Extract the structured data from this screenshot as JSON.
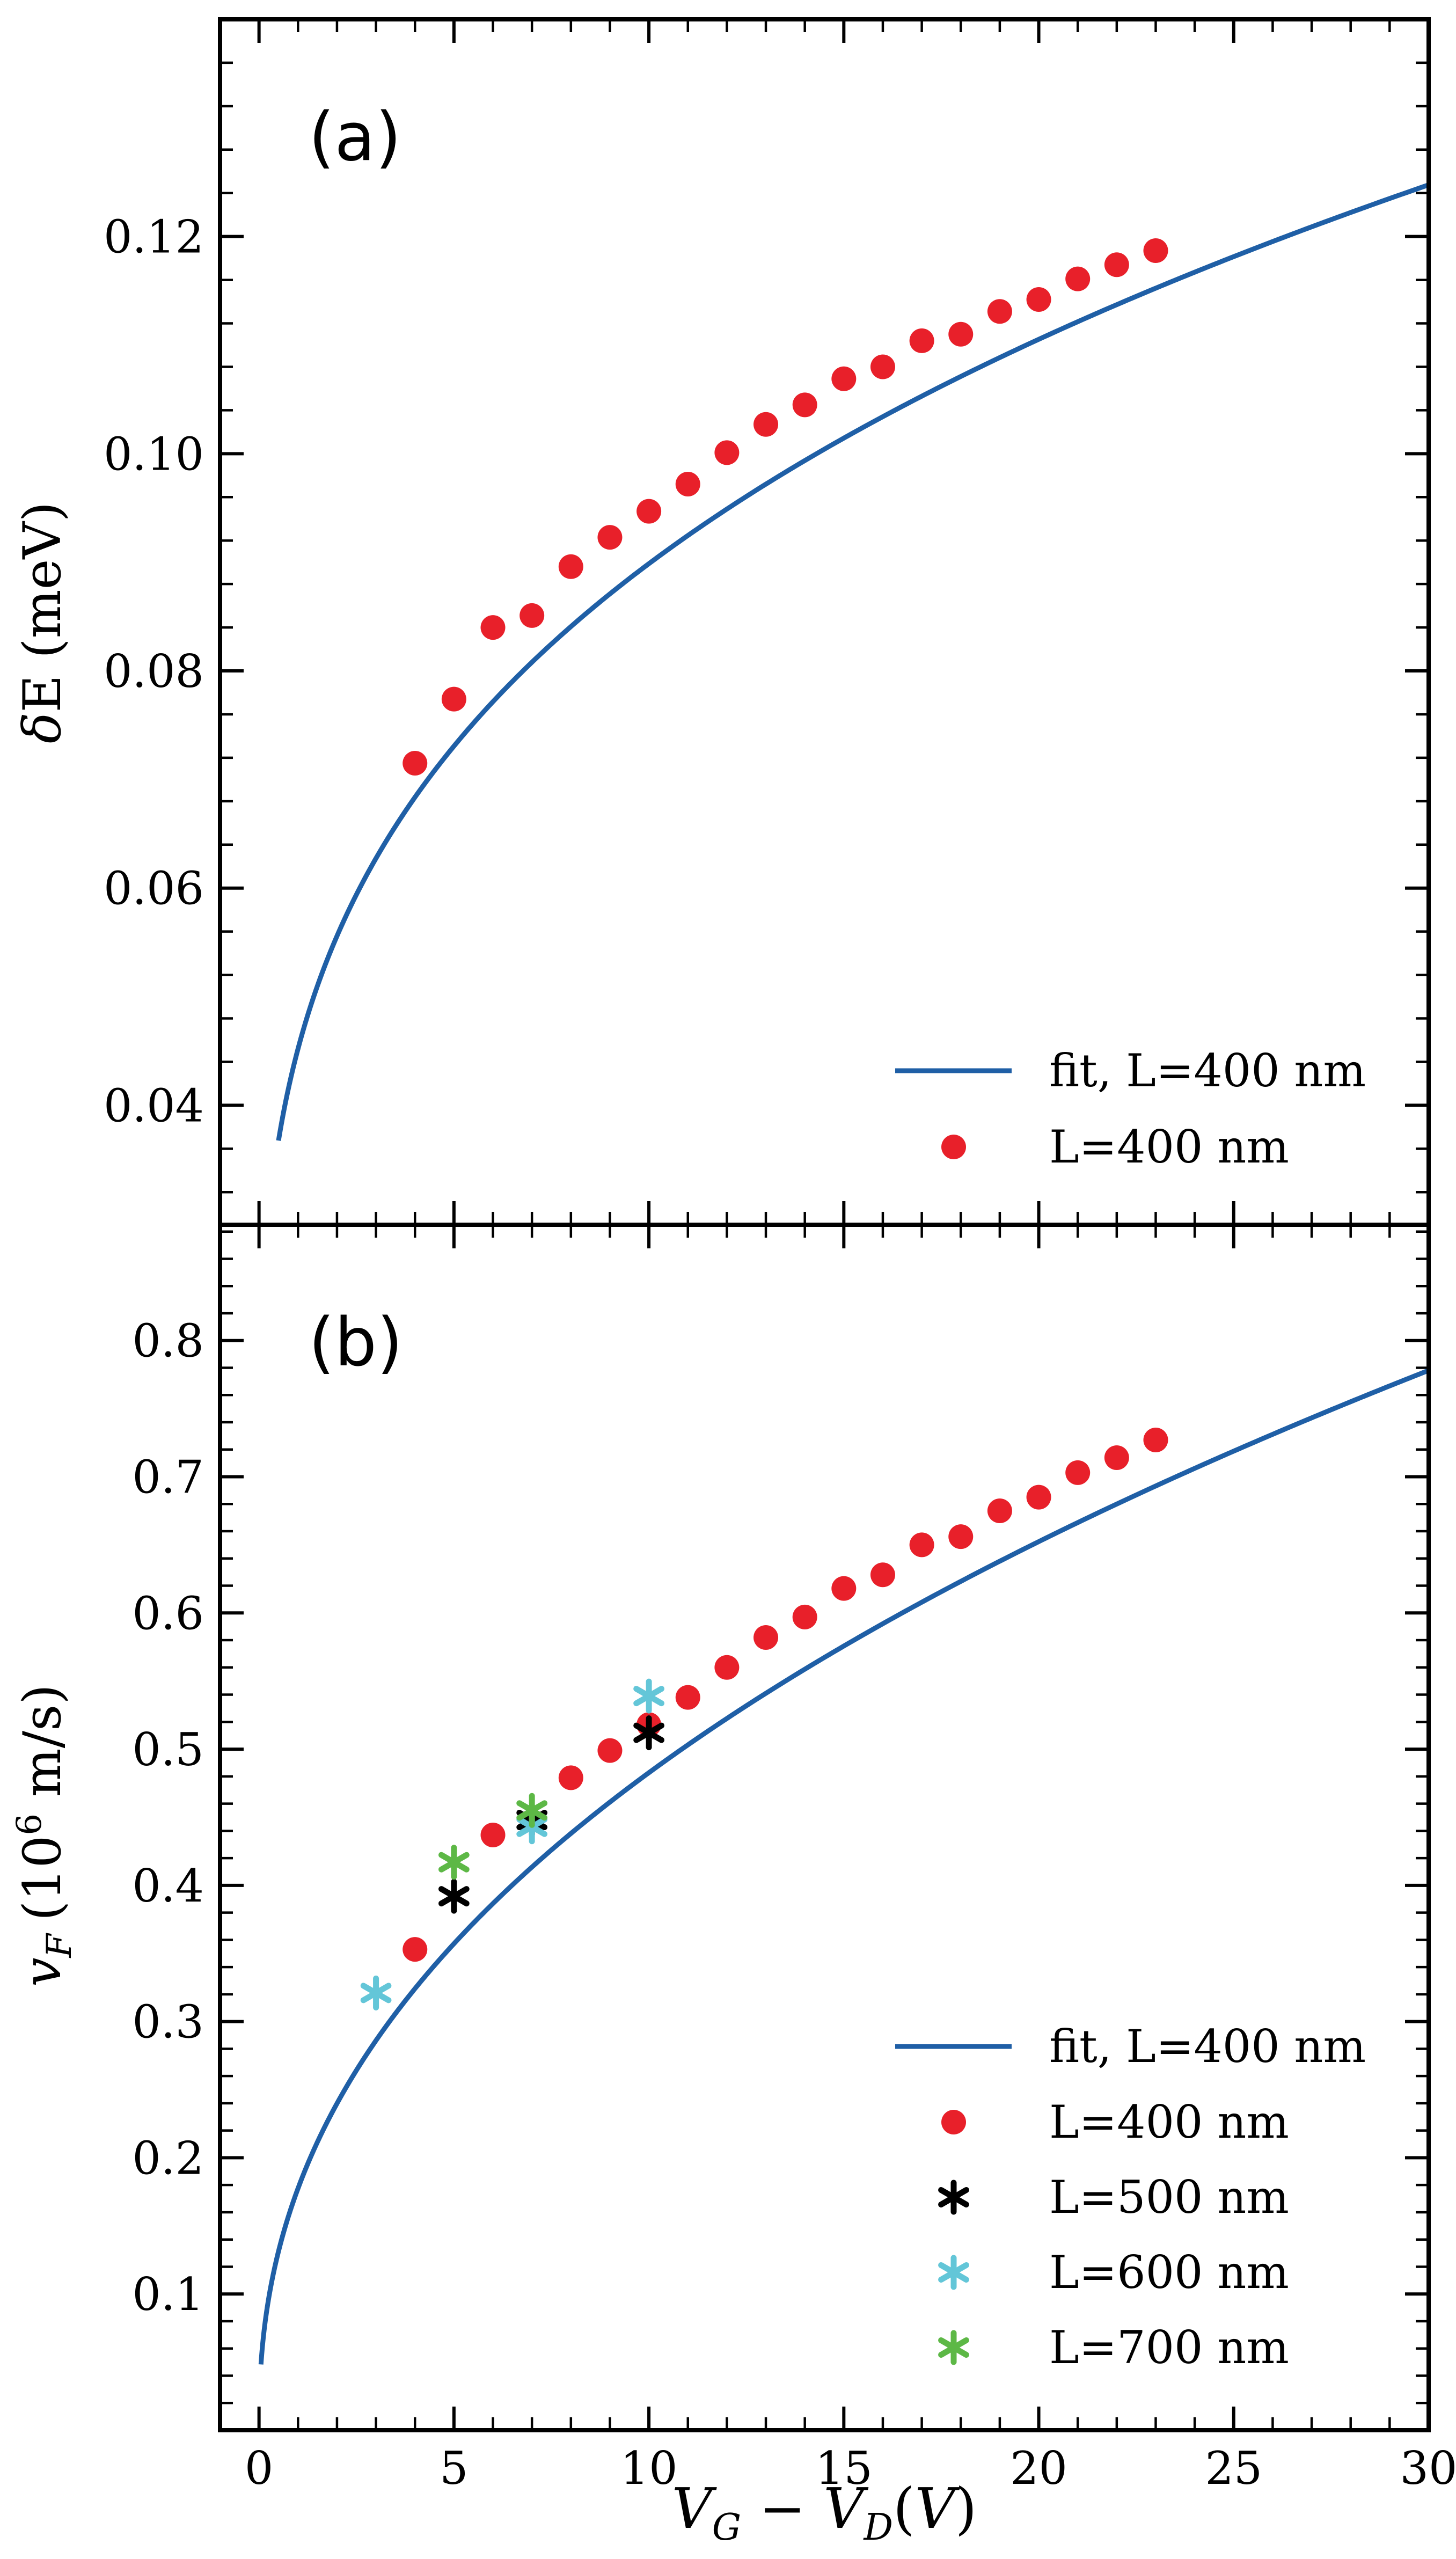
{
  "chart_data": [
    {
      "type": "scatter",
      "panel_label": "(a)",
      "ylabel_symbol": "δ",
      "ylabel_rest": "E (meV)",
      "xlim": [
        -1,
        30
      ],
      "ylim": [
        0.029,
        0.14
      ],
      "y_ticks": [
        0.04,
        0.06,
        0.08,
        0.1,
        0.12
      ],
      "y_tick_labels": [
        "0.04",
        "0.06",
        "0.08",
        "0.10",
        "0.12"
      ],
      "legend_position": "lower-right",
      "fit": {
        "name": "fit, L=400 nm",
        "color": "#1f5fa6",
        "model": "a * x^p",
        "a": 0.0452,
        "p": 0.2985,
        "x_range": [
          0.5,
          30
        ]
      },
      "series": [
        {
          "name": "L=400 nm",
          "marker": "circle",
          "color": "#e8202a",
          "x": [
            4,
            5,
            6,
            7,
            8,
            9,
            10,
            11,
            12,
            13,
            14,
            15,
            16,
            17,
            18,
            19,
            20,
            21,
            22,
            23
          ],
          "y": [
            0.0715,
            0.0774,
            0.084,
            0.0851,
            0.0896,
            0.0923,
            0.0947,
            0.0972,
            0.1001,
            0.1027,
            0.1045,
            0.1069,
            0.108,
            0.1104,
            0.111,
            0.1131,
            0.1142,
            0.1161,
            0.1174,
            0.1187
          ]
        }
      ]
    },
    {
      "type": "scatter",
      "panel_label": "(b)",
      "ylabel_symbol": "v",
      "ylabel_sub": "F",
      "ylabel_rest": "(10",
      "ylabel_exp": "6",
      "ylabel_tail": " m/s)",
      "xlabel_parts": [
        "V",
        "G",
        " − ",
        "V",
        "D",
        "(",
        "V",
        ")"
      ],
      "xlim": [
        -1,
        30
      ],
      "ylim": [
        0.0,
        0.885
      ],
      "x_ticks": [
        0,
        5,
        10,
        15,
        20,
        25,
        30
      ],
      "x_tick_labels": [
        "0",
        "5",
        "10",
        "15",
        "20",
        "25",
        "30"
      ],
      "y_ticks": [
        0.1,
        0.2,
        0.3,
        0.4,
        0.5,
        0.6,
        0.7,
        0.8
      ],
      "y_tick_labels": [
        "0.1",
        "0.2",
        "0.3",
        "0.4",
        "0.5",
        "0.6",
        "0.7",
        "0.8"
      ],
      "legend_position": "lower-right",
      "fit": {
        "name": "fit, L=400 nm",
        "color": "#1f5fa6",
        "model": "a * x^p",
        "a": 0.1775,
        "p": 0.4345,
        "x_range": [
          0.05,
          30
        ]
      },
      "series": [
        {
          "name": "L=400 nm",
          "marker": "circle",
          "color": "#e8202a",
          "x": [
            4,
            6,
            8,
            9,
            10,
            11,
            12,
            13,
            14,
            15,
            16,
            17,
            18,
            19,
            20,
            21,
            22,
            23
          ],
          "y": [
            0.353,
            0.437,
            0.479,
            0.499,
            0.518,
            0.538,
            0.56,
            0.582,
            0.597,
            0.618,
            0.628,
            0.65,
            0.656,
            0.675,
            0.685,
            0.703,
            0.714,
            0.727
          ]
        },
        {
          "name": "L=500 nm",
          "marker": "asterisk",
          "color": "#000000",
          "x": [
            5,
            7,
            10
          ],
          "y": [
            0.392,
            0.448,
            0.512
          ]
        },
        {
          "name": "L=600 nm",
          "marker": "asterisk",
          "color": "#63c6d8",
          "x": [
            3,
            7,
            10
          ],
          "y": [
            0.321,
            0.443,
            0.539
          ]
        },
        {
          "name": "L=700 nm",
          "marker": "asterisk",
          "color": "#5db846",
          "x": [
            5,
            7
          ],
          "y": [
            0.417,
            0.455
          ]
        }
      ]
    }
  ]
}
